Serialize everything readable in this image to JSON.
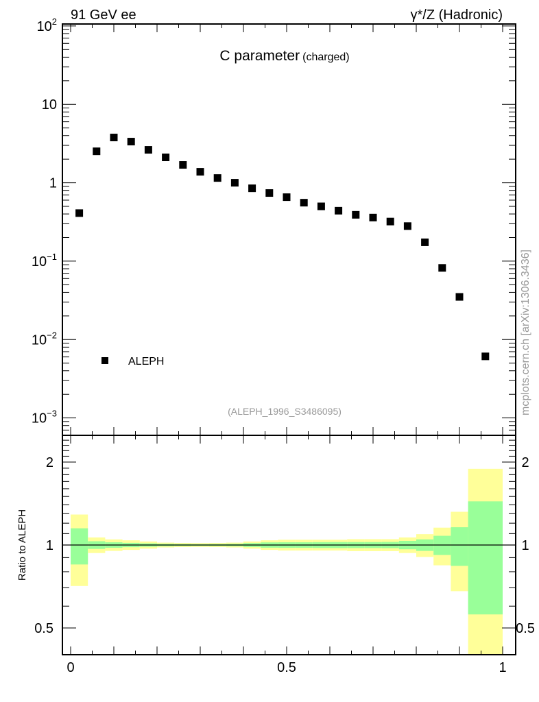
{
  "header": {
    "left_label": "91 GeV ee",
    "right_label": "γ*/Z (Hadronic)"
  },
  "side_label": "mcplots.cern.ch [arXiv:1306.3436]",
  "colors": {
    "stat_band": "#99ff99",
    "total_band": "#ffff99",
    "marker": "#000000",
    "grey_text": "#999999"
  },
  "chart_data": [
    {
      "type": "scatter",
      "title": "C parameter",
      "subtitle": "(charged)",
      "analysis_id": "(ALEPH_1996_S3486095)",
      "xlabel": "",
      "ylabel": "",
      "xlim": [
        0,
        1
      ],
      "ylim": [
        0.0006,
        106
      ],
      "yscale": "log",
      "ytick_labels": [
        {
          "value": 100,
          "base": "10",
          "exp": "2"
        },
        {
          "value": 10,
          "base": "10",
          "exp": ""
        },
        {
          "value": 1,
          "base": "1",
          "exp": ""
        },
        {
          "value": 0.1,
          "base": "10",
          "exp": "−1"
        },
        {
          "value": 0.01,
          "base": "10",
          "exp": "−2"
        },
        {
          "value": 0.001,
          "base": "10",
          "exp": "−3"
        }
      ],
      "legend": {
        "position": "bottom-left",
        "entries": [
          "ALEPH"
        ]
      },
      "series": [
        {
          "name": "ALEPH",
          "x": [
            0.02,
            0.06,
            0.1,
            0.14,
            0.18,
            0.22,
            0.26,
            0.3,
            0.34,
            0.38,
            0.42,
            0.46,
            0.5,
            0.54,
            0.58,
            0.62,
            0.66,
            0.7,
            0.74,
            0.78,
            0.82,
            0.86,
            0.9,
            0.96
          ],
          "y": [
            0.41,
            2.52,
            3.78,
            3.35,
            2.63,
            2.11,
            1.69,
            1.38,
            1.15,
            1.0,
            0.85,
            0.74,
            0.655,
            0.557,
            0.5,
            0.44,
            0.39,
            0.36,
            0.32,
            0.28,
            0.174,
            0.082,
            0.035,
            0.0061
          ]
        }
      ]
    },
    {
      "type": "area",
      "title": "",
      "xlabel": "",
      "ylabel": "Ratio to ALEPH",
      "xlim": [
        0,
        1
      ],
      "ylim": [
        0.4,
        2.5
      ],
      "yscale": "log",
      "ytick_labels": [
        {
          "value": 2,
          "label": "2"
        },
        {
          "value": 1,
          "label": "1"
        },
        {
          "value": 0.5,
          "label": "0.5"
        }
      ],
      "xtick_labels": [
        {
          "value": 0,
          "label": "0"
        },
        {
          "value": 0.5,
          "label": "0.5"
        },
        {
          "value": 1,
          "label": "1"
        }
      ],
      "bin_edges": [
        0,
        0.04,
        0.08,
        0.12,
        0.16,
        0.2,
        0.24,
        0.28,
        0.32,
        0.36,
        0.4,
        0.44,
        0.48,
        0.52,
        0.56,
        0.6,
        0.64,
        0.68,
        0.72,
        0.76,
        0.8,
        0.84,
        0.88,
        0.92,
        1.0
      ],
      "reference": 1.0,
      "stat_err": [
        0.15,
        0.032,
        0.023,
        0.018,
        0.014,
        0.01,
        0.008,
        0.007,
        0.008,
        0.01,
        0.016,
        0.022,
        0.023,
        0.023,
        0.024,
        0.025,
        0.025,
        0.025,
        0.026,
        0.035,
        0.048,
        0.08,
        0.16,
        0.44
      ],
      "total_err": [
        0.29,
        0.065,
        0.048,
        0.04,
        0.03,
        0.02,
        0.017,
        0.016,
        0.017,
        0.02,
        0.03,
        0.04,
        0.045,
        0.045,
        0.045,
        0.045,
        0.05,
        0.05,
        0.05,
        0.065,
        0.095,
        0.156,
        0.32,
        0.89
      ]
    }
  ]
}
